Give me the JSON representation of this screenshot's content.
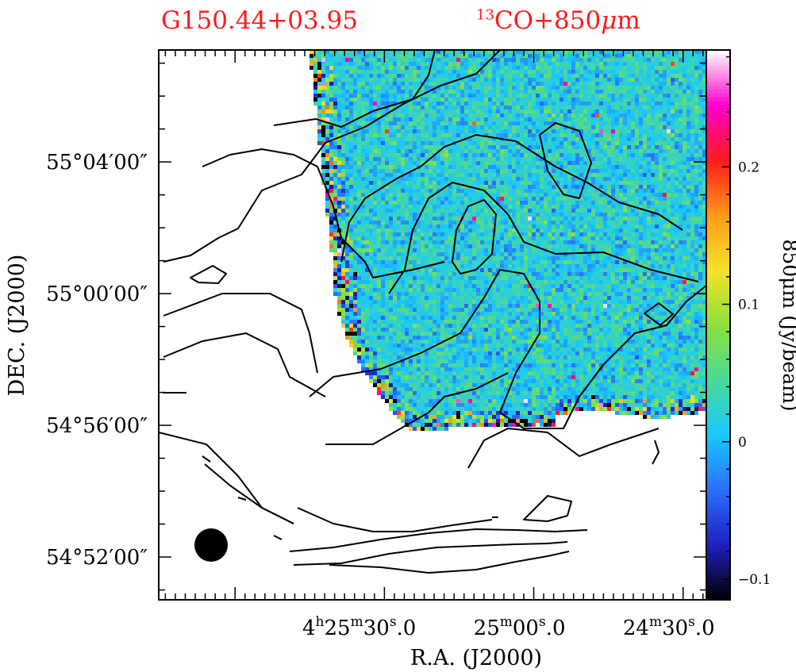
{
  "titles": {
    "left": "G150.44+03.95",
    "right_sup": "13",
    "right_main": "CO+850",
    "right_mu": "μ",
    "right_unit": "m"
  },
  "chart_data": {
    "type": "heatmap",
    "title": "G150.44+03.95  13CO+850μm",
    "xlabel": "R.A. (J2000)",
    "ylabel": "DEC. (J2000)",
    "colorbar_label": "850μm (Jy/beam)",
    "colorbar_range": [
      -0.115,
      0.285
    ],
    "colorbar_ticks": [
      {
        "value": -0.1,
        "label": "−0.1"
      },
      {
        "value": 0,
        "label": "0"
      },
      {
        "value": 0.1,
        "label": "0.1"
      },
      {
        "value": 0.2,
        "label": "0.2"
      }
    ],
    "x_range_arcsec": [
      1130,
      -520
    ],
    "y_range_arcmin": [
      -9.3,
      7.4
    ],
    "x_ticks": [
      {
        "offset_arcsec": 450,
        "label_parts": [
          "4",
          "h",
          "25",
          "m",
          "30",
          "s",
          ".0"
        ]
      },
      {
        "offset_arcsec": 0,
        "label_parts": [
          "",
          "",
          "25",
          "m",
          "00",
          "s",
          ".0"
        ]
      },
      {
        "offset_arcsec": -450,
        "label_parts": [
          "",
          "",
          "24",
          "m",
          "30",
          "s",
          ".0"
        ]
      }
    ],
    "y_ticks": [
      {
        "offset_arcmin": 4,
        "label": "55°04′00″"
      },
      {
        "offset_arcmin": 0,
        "label": "55°00′00″"
      },
      {
        "offset_arcmin": -4,
        "label": "54°56′00″"
      },
      {
        "offset_arcmin": -8,
        "label": "54°52′00″"
      }
    ],
    "contour_levels_shown": 6,
    "beam": "filled circle, lower-left",
    "colormap": [
      "#000000",
      "#1f1fc0",
      "#2a6fff",
      "#19c7ff",
      "#49d99a",
      "#8be03a",
      "#f5e22a",
      "#ff9a1a",
      "#ff1a1a",
      "#ff00cc",
      "#ffffff"
    ]
  }
}
